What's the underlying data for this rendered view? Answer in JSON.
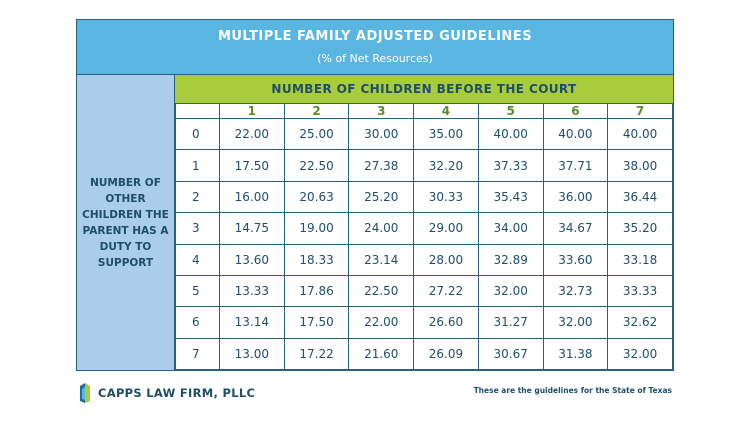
{
  "title": "MULTIPLE FAMILY ADJUSTED GUIDELINES",
  "subtitle": "(% of Net Resources)",
  "column_group_header": "NUMBER OF CHILDREN BEFORE THE COURT",
  "row_group_header": "NUMBER OF OTHER CHILDREN THE PARENT HAS A DUTY TO SUPPORT",
  "columns": [
    "1",
    "2",
    "3",
    "4",
    "5",
    "6",
    "7"
  ],
  "rows": [
    {
      "label": "0",
      "values": [
        "22.00",
        "25.00",
        "30.00",
        "35.00",
        "40.00",
        "40.00",
        "40.00"
      ]
    },
    {
      "label": "1",
      "values": [
        "17.50",
        "22.50",
        "27.38",
        "32.20",
        "37.33",
        "37.71",
        "38.00"
      ]
    },
    {
      "label": "2",
      "values": [
        "16.00",
        "20.63",
        "25.20",
        "30.33",
        "35.43",
        "36.00",
        "36.44"
      ]
    },
    {
      "label": "3",
      "values": [
        "14.75",
        "19.00",
        "24.00",
        "29.00",
        "34.00",
        "34.67",
        "35.20"
      ]
    },
    {
      "label": "4",
      "values": [
        "13.60",
        "18.33",
        "23.14",
        "28.00",
        "32.89",
        "33.60",
        "33.18"
      ]
    },
    {
      "label": "5",
      "values": [
        "13.33",
        "17.86",
        "22.50",
        "27.22",
        "32.00",
        "32.73",
        "33.33"
      ]
    },
    {
      "label": "6",
      "values": [
        "13.14",
        "17.50",
        "22.00",
        "26.60",
        "31.27",
        "32.00",
        "32.62"
      ]
    },
    {
      "label": "7",
      "values": [
        "13.00",
        "17.22",
        "21.60",
        "26.09",
        "30.67",
        "31.38",
        "32.00"
      ]
    }
  ],
  "footer": {
    "brand": "CAPPS LAW FIRM, PLLC",
    "logo_icon": "capps-law-firm-logo-icon",
    "note": "These are the guidelines for the State of Texas"
  },
  "colors": {
    "title_bar": "#5ab5e0",
    "side_header": "#a9cdea",
    "green_bar": "#a9cc3c",
    "text_dark": "#1f4e6b",
    "column_number": "#5b8a2b"
  }
}
